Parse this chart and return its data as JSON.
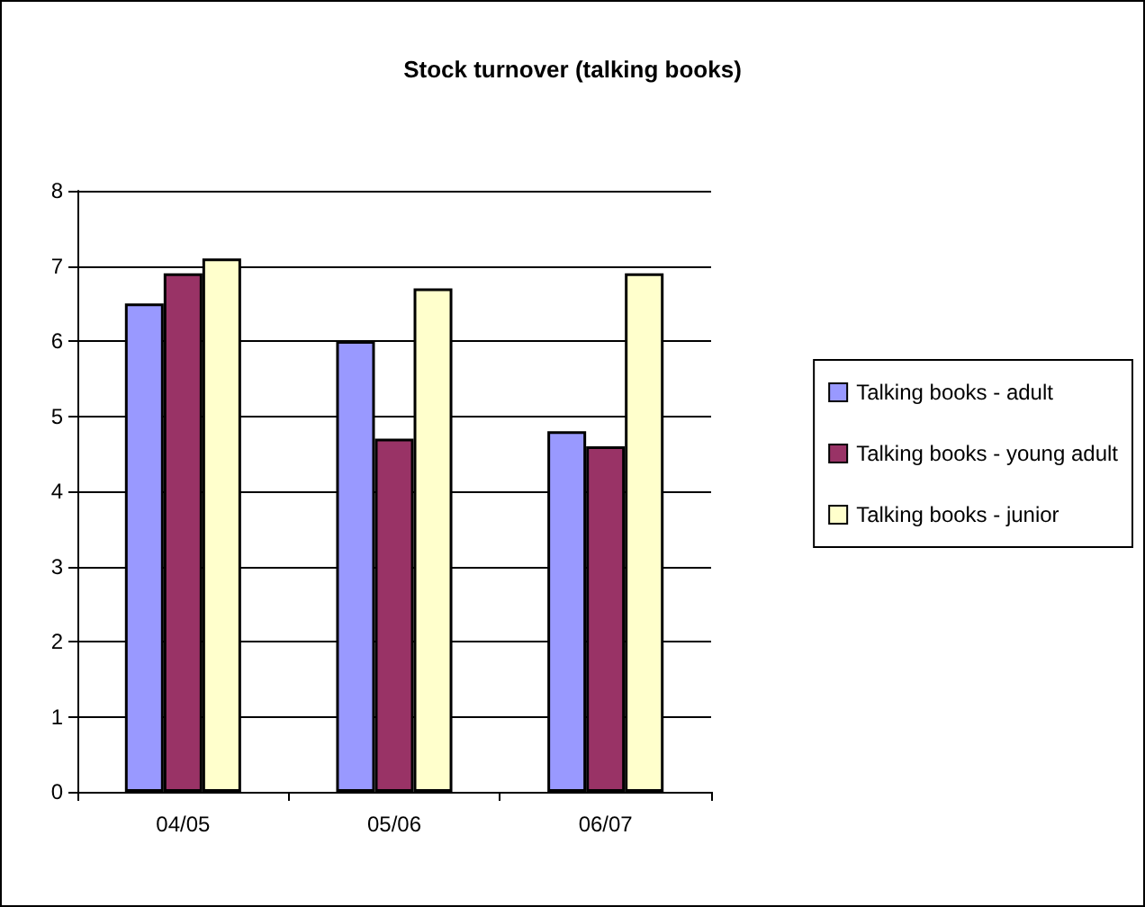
{
  "chart_data": {
    "type": "bar",
    "title": "Stock turnover (talking books)",
    "categories": [
      "04/05",
      "05/06",
      "06/07"
    ],
    "series": [
      {
        "name": "Talking books - adult",
        "color": "#9999ff",
        "values": [
          6.5,
          6.0,
          4.8
        ]
      },
      {
        "name": "Talking books - young adult",
        "color": "#993366",
        "values": [
          6.9,
          4.7,
          4.6
        ]
      },
      {
        "name": "Talking books - junior",
        "color": "#ffffcc",
        "values": [
          7.1,
          6.7,
          6.9
        ]
      }
    ],
    "ylim": [
      0,
      8
    ],
    "yticks": [
      0,
      1,
      2,
      3,
      4,
      5,
      6,
      7,
      8
    ],
    "grid": "y",
    "legend": "right"
  }
}
